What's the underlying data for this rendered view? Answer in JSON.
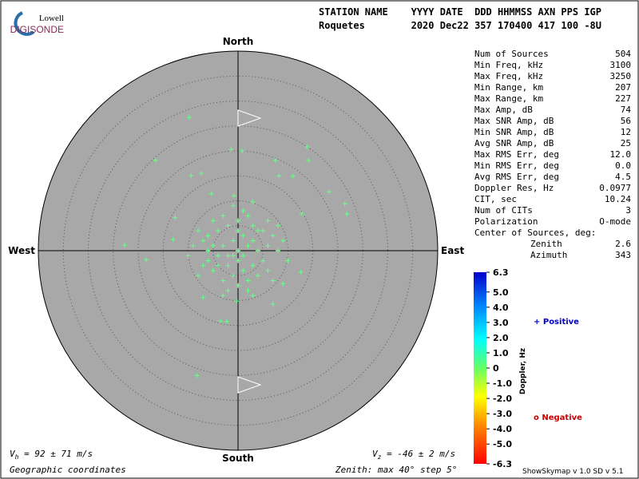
{
  "header": {
    "logo_top": "Lowell",
    "logo_bottom": "DIGISONDE",
    "line1": "STATION NAME    YYYY DATE  DDD HHMMSS AXN PPS IGP",
    "line2": "Roquetes        2020 Dec22 357 170400 417 100 -8U"
  },
  "stats": [
    [
      "Num of Sources",
      "504"
    ],
    [
      "Min Freq, kHz",
      "3100"
    ],
    [
      "Max Freq, kHz",
      "3250"
    ],
    [
      "Min Range, km",
      "207"
    ],
    [
      "Max Range, km",
      "227"
    ],
    [
      "Max Amp, dB",
      "74"
    ],
    [
      "Max SNR Amp, dB",
      "56"
    ],
    [
      "Min SNR Amp, dB",
      "12"
    ],
    [
      "Avg SNR Amp, dB",
      "25"
    ],
    [
      "Max RMS Err, deg",
      "12.0"
    ],
    [
      "Min RMS Err, deg",
      "0.0"
    ],
    [
      "Avg RMS Err, deg",
      "4.5"
    ],
    [
      "Doppler Res, Hz",
      "0.0977"
    ],
    [
      "CIT, sec",
      "10.24"
    ],
    [
      "Num of CITs",
      "3"
    ],
    [
      "Polarization",
      "O-mode"
    ]
  ],
  "center": {
    "title": "Center of Sources, deg:",
    "rows": [
      [
        "Zenith",
        "2.6"
      ],
      [
        "Azimuth",
        "343"
      ]
    ]
  },
  "footer": {
    "vh_v": "V",
    "vh_sub": "h",
    "vh": " = 92 ± 71 m/s",
    "vz_v": "V",
    "vz_sub": "z",
    "vz": " = -46 ± 2 m/s",
    "coords": "Geographic coordinates",
    "zenith": "Zenith: max 40°  step 5°",
    "version": "ShowSkymap v 1.0  SD v 5.1"
  },
  "legend": {
    "positive": "+ Positive",
    "negative": "o Negative"
  },
  "chart_data": {
    "type": "scatter",
    "directions": {
      "north": "North",
      "south": "South",
      "east": "East",
      "west": "West"
    },
    "xlim": [
      -40,
      40
    ],
    "ylim": [
      -40,
      40
    ],
    "rticks": [
      5,
      10,
      15,
      20,
      25,
      30,
      35
    ],
    "color": "#66ff88",
    "x": [
      -9.8,
      -1.4,
      0.8,
      13.8,
      -16.5,
      14.1,
      7.5,
      -9.4,
      -7.4,
      11,
      8.2,
      21.4,
      21.8,
      18.2,
      12.8,
      -22.7,
      -18.4,
      -13,
      -12.6,
      -8.2,
      -3.5,
      -2.2,
      -0.2,
      7,
      -7,
      9,
      12.6,
      -5.3,
      -0.8,
      2.9,
      -4,
      -5,
      -3,
      -6,
      -2,
      0,
      2,
      3,
      4,
      1,
      -1,
      -3,
      -5,
      -7,
      -8,
      -6,
      -4,
      -2,
      0,
      2,
      4,
      6,
      7,
      5,
      3,
      1,
      -1,
      -3,
      -5,
      0,
      2,
      4,
      6,
      -2,
      0,
      1,
      -1,
      3,
      5,
      -4,
      -6,
      -7,
      8,
      9,
      -9,
      2,
      -2,
      0,
      1,
      -1,
      6,
      8,
      -8,
      7,
      3,
      -3,
      10,
      -10
    ],
    "values": [
      26.7,
      20.3,
      20,
      20.8,
      18.1,
      18.1,
      18.1,
      15,
      15.5,
      14.9,
      15,
      9.4,
      7.4,
      11.8,
      7.4,
      1.1,
      -1.8,
      2.2,
      6.6,
      -25,
      -14.1,
      -14.2,
      -10.1,
      -10.7,
      -9.4,
      -6.6,
      -4.3,
      11.4,
      11,
      9.8,
      4,
      6,
      7,
      3,
      5,
      6,
      7,
      5,
      4,
      3,
      2,
      1,
      1,
      2,
      4,
      -2,
      -3,
      -1,
      0,
      1,
      0,
      1,
      3,
      -2,
      -3,
      -4,
      -5,
      -6,
      -4,
      -7,
      -6,
      -5,
      -4,
      -3,
      -2,
      -1,
      -1,
      2,
      4,
      -1,
      0,
      -3,
      0,
      2,
      1,
      -8,
      -8,
      4,
      8,
      9,
      6,
      5,
      -5,
      -6,
      -9,
      -9,
      -2,
      -1
    ],
    "colorbar": {
      "label": "Doppler, Hz",
      "clim": [
        -6.3,
        6.3
      ],
      "ticks": [
        6.3,
        {
          "value": 5,
          "label": "5.0"
        },
        {
          "value": 4,
          "label": "4.0"
        },
        {
          "value": 3,
          "label": "3.0"
        },
        {
          "value": 2,
          "label": "2.0"
        },
        {
          "value": 1,
          "label": "1.0"
        },
        0,
        {
          "value": -1,
          "label": "-1.0"
        },
        {
          "value": -2,
          "label": "-2.0"
        },
        {
          "value": -3,
          "label": "-3.0"
        },
        {
          "value": -4,
          "label": "-4.0"
        },
        {
          "value": -5,
          "label": "-5.0"
        },
        -6.3
      ]
    }
  }
}
